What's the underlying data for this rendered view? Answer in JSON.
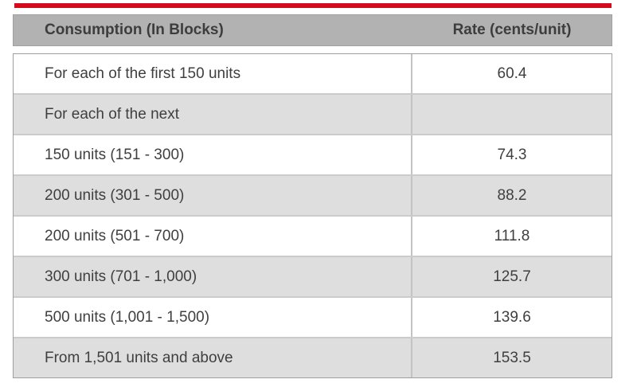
{
  "colors": {
    "accent_red": "#d40a1d",
    "header_bg": "#b2b2b2",
    "stripe_bg": "#dedede",
    "border": "#c3c3c3",
    "text": "#3f3f3f"
  },
  "table": {
    "columns": [
      "Consumption (In Blocks)",
      "Rate (cents/unit)"
    ],
    "rows": [
      {
        "consumption": "For each of the first 150 units",
        "rate": "60.4"
      },
      {
        "consumption": "For each of the next",
        "rate": ""
      },
      {
        "consumption": "150 units (151 - 300)",
        "rate": "74.3"
      },
      {
        "consumption": "200 units (301 - 500)",
        "rate": "88.2"
      },
      {
        "consumption": "200 units (501 - 700)",
        "rate": "111.8"
      },
      {
        "consumption": "300 units (701 - 1,000)",
        "rate": "125.7"
      },
      {
        "consumption": "500 units (1,001 - 1,500)",
        "rate": "139.6"
      },
      {
        "consumption": "From 1,501 units and above",
        "rate": "153.5"
      }
    ]
  }
}
